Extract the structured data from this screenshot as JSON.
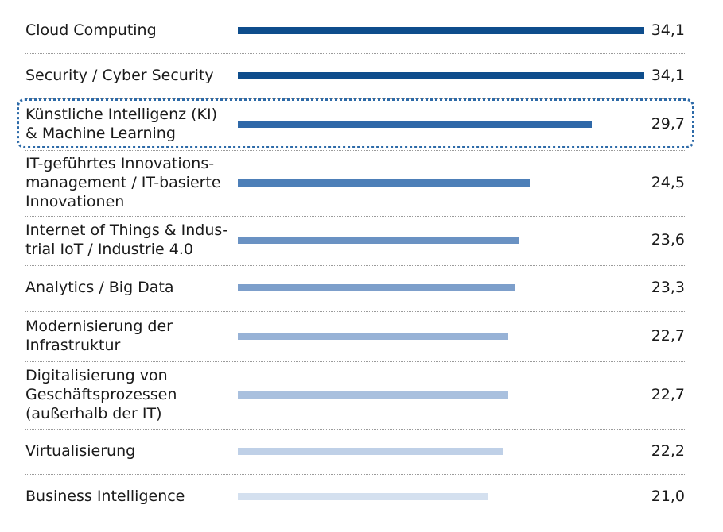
{
  "chart_data": {
    "type": "bar",
    "orientation": "horizontal",
    "categories": [
      "Cloud Computing",
      "Security / Cyber Security",
      "Künstliche Intelligenz (KI)\n& Machine Learning",
      "IT-geführtes Innovations-\nmanagement / IT-basierte\nInnovationen",
      "Internet of Things & Indus-\ntrial IoT / Industrie 4.0",
      "Analytics / Big Data",
      "Modernisierung der\nInfrastruktur",
      "Digitalisierung von\nGeschäftsprozessen\n(außerhalb der IT)",
      "Virtualisierung",
      "Business Intelligence"
    ],
    "values": [
      34.1,
      34.1,
      29.7,
      24.5,
      23.6,
      23.3,
      22.7,
      22.7,
      22.2,
      21.0
    ],
    "value_labels": [
      "34,1",
      "34,1",
      "29,7",
      "24,5",
      "23,6",
      "23,3",
      "22,7",
      "22,7",
      "22,2",
      "21,0"
    ],
    "xlim": [
      0,
      34.1
    ],
    "highlighted_index": 2,
    "bar_colors": [
      "#0e4d8c",
      "#0e4d8c",
      "#2f68a8",
      "#4d7fb8",
      "#6a92c3",
      "#7d9fcb",
      "#97b2d6",
      "#a9c0de",
      "#bfd0e7",
      "#d4e0ef"
    ],
    "highlight_color": "#2d6aa8"
  }
}
